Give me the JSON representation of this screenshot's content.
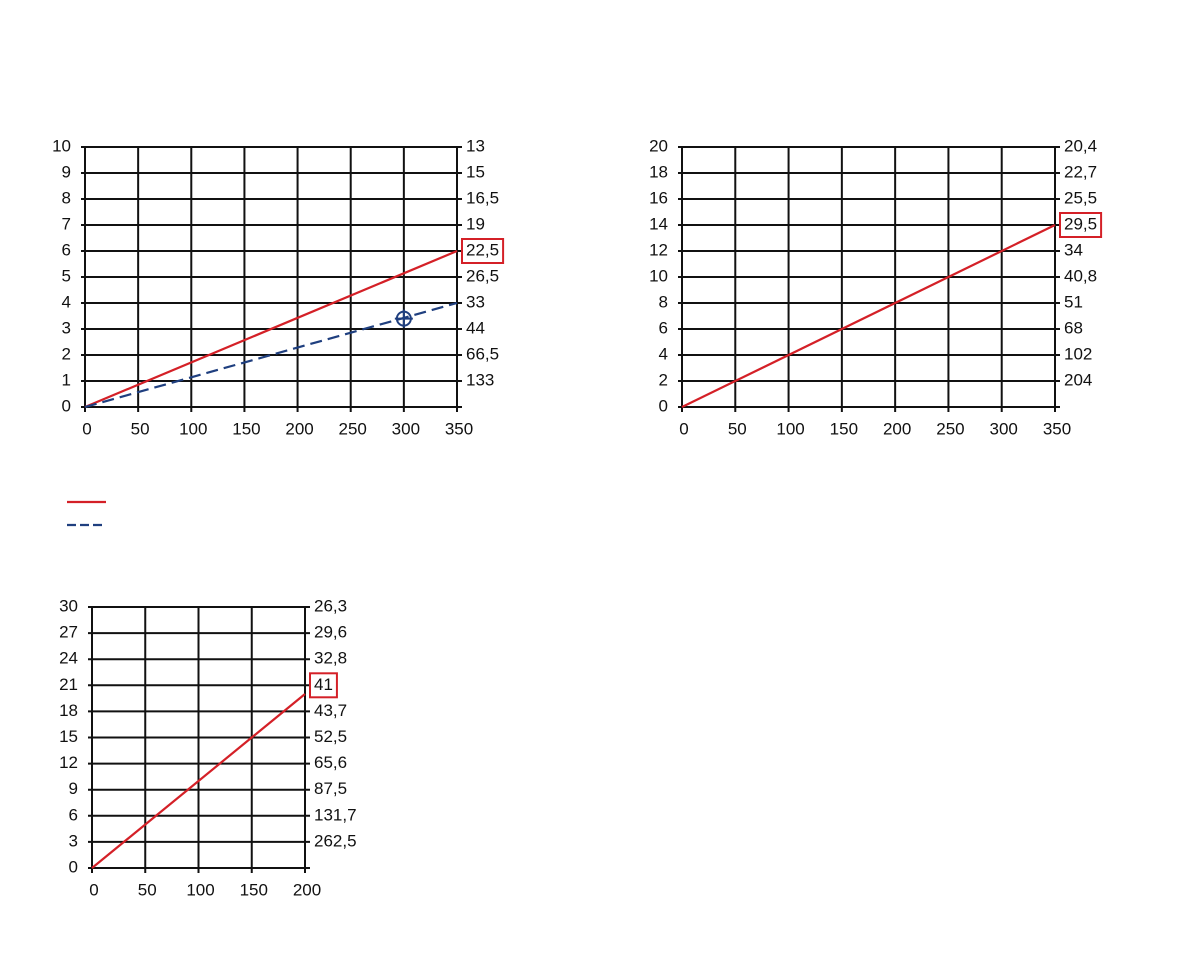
{
  "chart_data": [
    {
      "type": "line",
      "xlim": [
        0,
        350
      ],
      "ylim": [
        0,
        10
      ],
      "xticks": [
        0,
        50,
        100,
        150,
        200,
        250,
        300,
        350
      ],
      "yticks": [
        0,
        1,
        2,
        3,
        4,
        5,
        6,
        7,
        8,
        9,
        10
      ],
      "y2_labels": [
        null,
        "133",
        "66,5",
        "44",
        "33",
        "26,5",
        "22,5",
        "19",
        "16,5",
        "15",
        "13"
      ],
      "highlighted_y2_label": 6,
      "grid": true,
      "legend": true,
      "series": [
        {
          "color": "#d42027",
          "dashed": false,
          "x": [
            0,
            350
          ],
          "values": [
            0,
            6
          ]
        },
        {
          "color": "#1f3f7f",
          "dashed": true,
          "x": [
            0,
            350
          ],
          "values": [
            0,
            4
          ]
        }
      ],
      "point": {
        "x": 300,
        "y": 3.4,
        "color": "#1f3f7f"
      }
    },
    {
      "type": "line",
      "xlim": [
        0,
        350
      ],
      "ylim": [
        0,
        20
      ],
      "xticks": [
        0,
        50,
        100,
        150,
        200,
        250,
        300,
        350
      ],
      "yticks": [
        0,
        2,
        4,
        6,
        8,
        10,
        12,
        14,
        16,
        18,
        20
      ],
      "y2_labels": [
        null,
        "204",
        "102",
        "68",
        "51",
        "40,8",
        "34",
        "29,5",
        "25,5",
        "22,7",
        "20,4"
      ],
      "highlighted_y2_label": 7,
      "grid": true,
      "series": [
        {
          "color": "#d42027",
          "dashed": false,
          "x": [
            0,
            350
          ],
          "values": [
            0,
            14
          ]
        }
      ]
    },
    {
      "type": "line",
      "xlim": [
        0,
        200
      ],
      "ylim": [
        0,
        30
      ],
      "xticks": [
        0,
        50,
        100,
        150,
        200
      ],
      "yticks": [
        0,
        3,
        6,
        9,
        12,
        15,
        18,
        21,
        24,
        27,
        30
      ],
      "y2_labels": [
        null,
        "262,5",
        "131,7",
        "87,5",
        "65,6",
        "52,5",
        "43,7",
        "41",
        "32,8",
        "29,6",
        "26,3"
      ],
      "highlighted_y2_label": 7,
      "grid": true,
      "series": [
        {
          "color": "#d42027",
          "dashed": false,
          "x": [
            0,
            200
          ],
          "values": [
            0,
            20
          ]
        }
      ]
    }
  ]
}
